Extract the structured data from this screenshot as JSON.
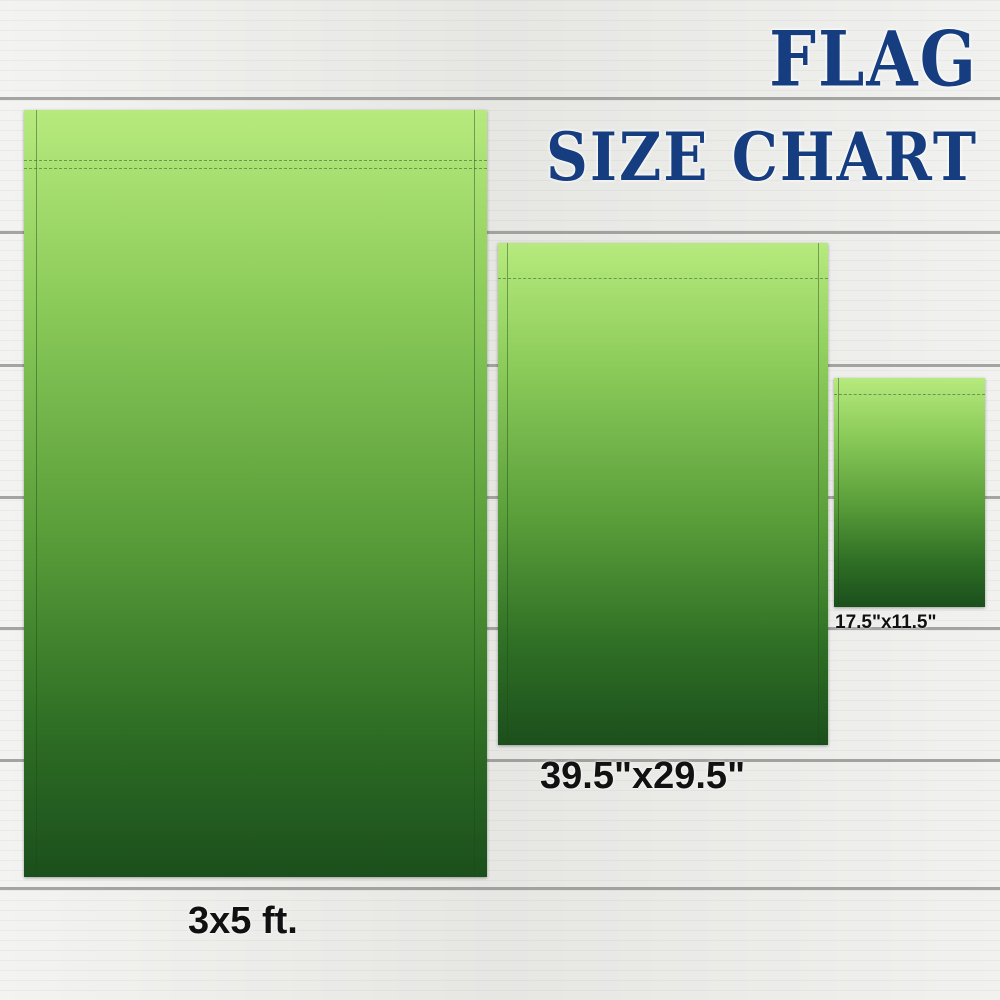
{
  "title": {
    "line1": "FLAG",
    "line2": "SIZE CHART",
    "color": "#163d80"
  },
  "flags": [
    {
      "label": "3x5 ft."
    },
    {
      "label": "39.5\"x29.5\""
    },
    {
      "label": "17.5\"x11.5\""
    }
  ],
  "colors": {
    "flag_top": "#b7ea7e",
    "flag_bottom": "#1b4f1c"
  }
}
